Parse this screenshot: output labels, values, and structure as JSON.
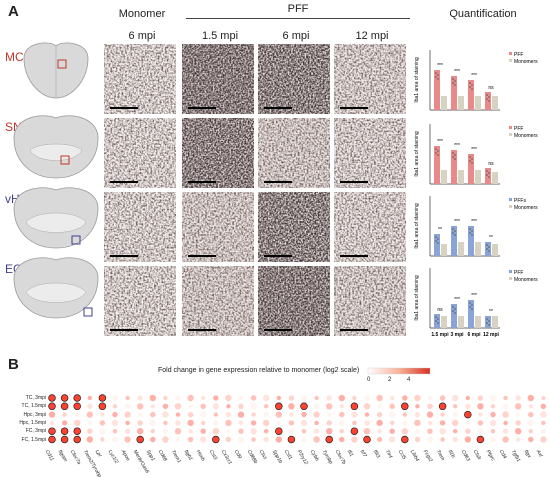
{
  "panel_a": {
    "letter": "A",
    "col_monomer": "Monomer",
    "col_pff": "PFF",
    "col_quant": "Quantification",
    "times": [
      "6 mpi",
      "1.5 mpi",
      "6 mpi",
      "12 mpi"
    ],
    "regions": [
      {
        "label": "MC",
        "color": "#c0392b"
      },
      {
        "label": "SN",
        "color": "#c0392b"
      },
      {
        "label": "vHpc (CA1)",
        "color": "#3f3f8a"
      },
      {
        "label": "EC",
        "color": "#3f3f8a"
      }
    ]
  },
  "quant": {
    "ylabel": "Iba1 area of staining",
    "xticks": [
      "1.5 mpi",
      "3 mpi",
      "6 mpi",
      "12 mpi"
    ],
    "plots": [
      {
        "legend": [
          "PFF",
          "Monomers"
        ],
        "sig": [
          "***",
          "***",
          "***",
          "ns"
        ],
        "color": "#e88a8a"
      },
      {
        "legend": [
          "PFF",
          "Monomers"
        ],
        "sig": [
          "***",
          "***",
          "***",
          "ns"
        ],
        "color": "#e88a8a"
      },
      {
        "legend": [
          "PFFs",
          "Monomers"
        ],
        "sig": [
          "**",
          "***",
          "***",
          "**"
        ],
        "color": "#8aa4d6"
      },
      {
        "legend": [
          "PFF",
          "Monomers"
        ],
        "sig": [
          "ns",
          "***",
          "***",
          "**"
        ],
        "color": "#8aa4d6"
      }
    ]
  },
  "panel_b": {
    "letter": "B",
    "legend_title": "Fold change in gene expression relative to monomer (log2 scale)",
    "legend_ticks": [
      "0",
      "2",
      "4"
    ],
    "rows": [
      "TC, 3mpi",
      "TC, 1.5mpi",
      "Hpc, 3mpi",
      "Hpc, 1.5mpi",
      "FC, 3mpi",
      "FC, 1.5mpi"
    ],
    "genes": [
      "Cd11",
      "Itgam",
      "Clec7a",
      "Trem2/Tyrobp",
      "Lpl",
      "Lyz1/2",
      "Apoe",
      "Mertk/Gas6",
      "Spp1",
      "Cd68",
      "Trem1",
      "Itgb1",
      "Hexb",
      "Cst3",
      "Cx3cr1",
      "Cd9",
      "Cd68b",
      "Ctss",
      "Spp1b",
      "Csf1",
      "P2ry12",
      "Cybb",
      "Tyrobp",
      "Clec7b",
      "Ifi1",
      "Irf7",
      "Ifit3",
      "Tlr4",
      "Ccl5",
      "Lilrb4",
      "Fcgr2",
      "Trem",
      "Il1b",
      "Cd63",
      "Ctsb",
      "Ptprc",
      "Cd4",
      "Tgfb1",
      "Itgx",
      "Axl"
    ],
    "circled": [
      [
        0,
        0
      ],
      [
        0,
        1
      ],
      [
        0,
        2
      ],
      [
        0,
        4
      ],
      [
        1,
        0
      ],
      [
        1,
        1
      ],
      [
        1,
        2
      ],
      [
        1,
        4
      ],
      [
        1,
        18
      ],
      [
        1,
        20
      ],
      [
        1,
        24
      ],
      [
        1,
        28
      ],
      [
        1,
        31
      ],
      [
        2,
        33
      ],
      [
        4,
        0
      ],
      [
        4,
        1
      ],
      [
        4,
        2
      ],
      [
        4,
        18
      ],
      [
        4,
        24
      ],
      [
        5,
        0
      ],
      [
        5,
        1
      ],
      [
        5,
        2
      ],
      [
        5,
        7
      ],
      [
        5,
        13
      ],
      [
        5,
        19
      ],
      [
        5,
        22
      ],
      [
        5,
        25
      ],
      [
        5,
        28
      ],
      [
        5,
        34
      ]
    ]
  }
}
